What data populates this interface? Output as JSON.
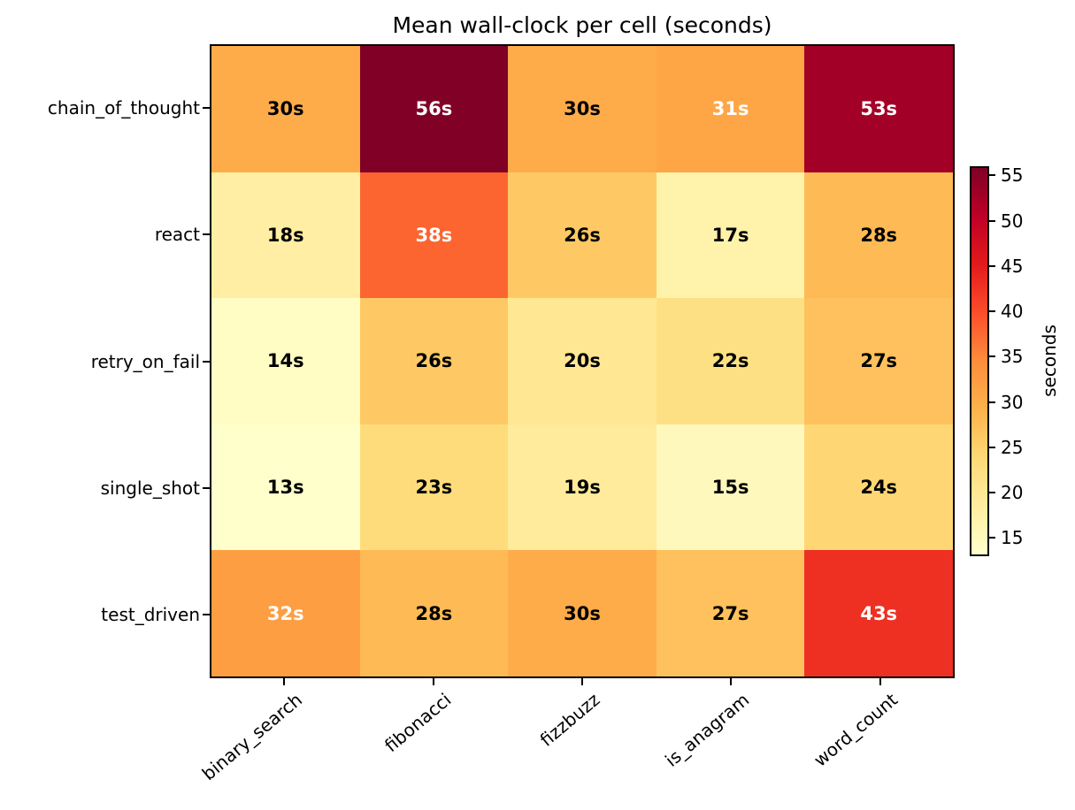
{
  "chart_data": {
    "type": "heatmap",
    "title": "Mean wall-clock per cell (seconds)",
    "rows": [
      "chain_of_thought",
      "react",
      "retry_on_fail",
      "single_shot",
      "test_driven"
    ],
    "columns": [
      "binary_search",
      "fibonacci",
      "fizzbuzz",
      "is_anagram",
      "word_count"
    ],
    "values": [
      [
        30,
        56,
        30,
        31,
        53
      ],
      [
        18,
        38,
        26,
        17,
        28
      ],
      [
        14,
        26,
        20,
        22,
        27
      ],
      [
        13,
        23,
        19,
        15,
        24
      ],
      [
        32,
        28,
        30,
        27,
        43
      ]
    ],
    "value_suffix": "s",
    "text_white_above": 30,
    "text_color_dark": "#000000",
    "text_color_light": "#ffffff",
    "colorbar": {
      "label": "seconds",
      "ticks": [
        15,
        20,
        25,
        30,
        35,
        40,
        45,
        50,
        55
      ],
      "vmin": 13,
      "vmax": 56
    },
    "colormap": {
      "name": "YlOrRd",
      "stops": [
        "#ffffcc",
        "#ffeda0",
        "#fed976",
        "#feb24c",
        "#fd8d3c",
        "#fc4e2a",
        "#e31a1c",
        "#bd0026",
        "#800026"
      ]
    },
    "grid": false,
    "xlabel": "",
    "ylabel": ""
  }
}
